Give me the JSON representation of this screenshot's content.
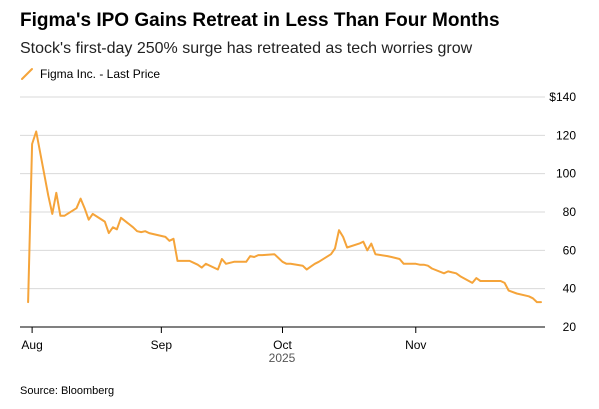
{
  "title": "Figma's IPO Gains Retreat in Less Than Four Months",
  "subtitle": "Stock's first-day 250% surge has retreated as tech worries grow",
  "source": "Source: Bloomberg",
  "colors": {
    "line": "#f5a43a",
    "grid": "#d9d9d9",
    "axis": "#000000"
  },
  "chart_data": {
    "type": "line",
    "title": "Figma's IPO Gains Retreat in Less Than Four Months",
    "subtitle": "Stock's first-day 250% surge has retreated as tech worries grow",
    "legend": "top-left",
    "grid": true,
    "xlabel": "2025",
    "ylabel": "",
    "ylim": [
      20,
      140
    ],
    "y_ticks": [
      20,
      40,
      60,
      80,
      100,
      120,
      140
    ],
    "y_tick_labels": [
      "20",
      "40",
      "60",
      "80",
      "100",
      "120",
      "$140"
    ],
    "x_ticks": [
      {
        "date": "2025-07-31",
        "label": "Aug"
      },
      {
        "date": "2025-09-01",
        "label": "Sep"
      },
      {
        "date": "2025-10-01",
        "label": "Oct"
      },
      {
        "date": "2025-11-03",
        "label": "Nov"
      }
    ],
    "series": [
      {
        "name": "Figma Inc. - Last Price",
        "points": [
          [
            "2025-07-30",
            33
          ],
          [
            "2025-07-31",
            115.5
          ],
          [
            "2025-08-01",
            122
          ],
          [
            "2025-08-04",
            88.5
          ],
          [
            "2025-08-05",
            79
          ],
          [
            "2025-08-06",
            90
          ],
          [
            "2025-08-07",
            78
          ],
          [
            "2025-08-08",
            78
          ],
          [
            "2025-08-11",
            82
          ],
          [
            "2025-08-12",
            87
          ],
          [
            "2025-08-13",
            82
          ],
          [
            "2025-08-14",
            76
          ],
          [
            "2025-08-15",
            79
          ],
          [
            "2025-08-18",
            75
          ],
          [
            "2025-08-19",
            69
          ],
          [
            "2025-08-20",
            72
          ],
          [
            "2025-08-21",
            71
          ],
          [
            "2025-08-22",
            77
          ],
          [
            "2025-08-25",
            72
          ],
          [
            "2025-08-26",
            70
          ],
          [
            "2025-08-27",
            69.5
          ],
          [
            "2025-08-28",
            70
          ],
          [
            "2025-08-29",
            69
          ],
          [
            "2025-09-02",
            67
          ],
          [
            "2025-09-03",
            65
          ],
          [
            "2025-09-04",
            66
          ],
          [
            "2025-09-05",
            54.5
          ],
          [
            "2025-09-08",
            54.5
          ],
          [
            "2025-09-09",
            53.5
          ],
          [
            "2025-09-10",
            52.5
          ],
          [
            "2025-09-11",
            51
          ],
          [
            "2025-09-12",
            53
          ],
          [
            "2025-09-15",
            50
          ],
          [
            "2025-09-16",
            55.5
          ],
          [
            "2025-09-17",
            53
          ],
          [
            "2025-09-18",
            53.5
          ],
          [
            "2025-09-19",
            54
          ],
          [
            "2025-09-22",
            54
          ],
          [
            "2025-09-23",
            57
          ],
          [
            "2025-09-24",
            56.5
          ],
          [
            "2025-09-25",
            57.5
          ],
          [
            "2025-09-26",
            57.5
          ],
          [
            "2025-09-29",
            58
          ],
          [
            "2025-09-30",
            56
          ],
          [
            "2025-10-01",
            54
          ],
          [
            "2025-10-02",
            53
          ],
          [
            "2025-10-03",
            53
          ],
          [
            "2025-10-06",
            52
          ],
          [
            "2025-10-07",
            50
          ],
          [
            "2025-10-08",
            51.5
          ],
          [
            "2025-10-09",
            53
          ],
          [
            "2025-10-10",
            54
          ],
          [
            "2025-10-13",
            58
          ],
          [
            "2025-10-14",
            61
          ],
          [
            "2025-10-15",
            70.5
          ],
          [
            "2025-10-16",
            67
          ],
          [
            "2025-10-17",
            61.5
          ],
          [
            "2025-10-20",
            63.5
          ],
          [
            "2025-10-21",
            64.5
          ],
          [
            "2025-10-22",
            60
          ],
          [
            "2025-10-23",
            63.5
          ],
          [
            "2025-10-24",
            58
          ],
          [
            "2025-10-27",
            57
          ],
          [
            "2025-10-28",
            56.5
          ],
          [
            "2025-10-29",
            56
          ],
          [
            "2025-10-30",
            55.5
          ],
          [
            "2025-10-31",
            53
          ],
          [
            "2025-11-03",
            53
          ],
          [
            "2025-11-04",
            52.5
          ],
          [
            "2025-11-05",
            52.5
          ],
          [
            "2025-11-06",
            52
          ],
          [
            "2025-11-07",
            50.5
          ],
          [
            "2025-11-10",
            48
          ],
          [
            "2025-11-11",
            49
          ],
          [
            "2025-11-12",
            48.5
          ],
          [
            "2025-11-13",
            48
          ],
          [
            "2025-11-14",
            46.5
          ],
          [
            "2025-11-17",
            43
          ],
          [
            "2025-11-18",
            45.5
          ],
          [
            "2025-11-19",
            44
          ],
          [
            "2025-11-20",
            44
          ],
          [
            "2025-11-21",
            44
          ],
          [
            "2025-11-24",
            44
          ],
          [
            "2025-11-25",
            43
          ],
          [
            "2025-11-26",
            39
          ],
          [
            "2025-11-28",
            37.5
          ],
          [
            "2025-12-01",
            36
          ],
          [
            "2025-12-02",
            35
          ],
          [
            "2025-12-03",
            33
          ],
          [
            "2025-12-04",
            33
          ]
        ]
      }
    ]
  }
}
